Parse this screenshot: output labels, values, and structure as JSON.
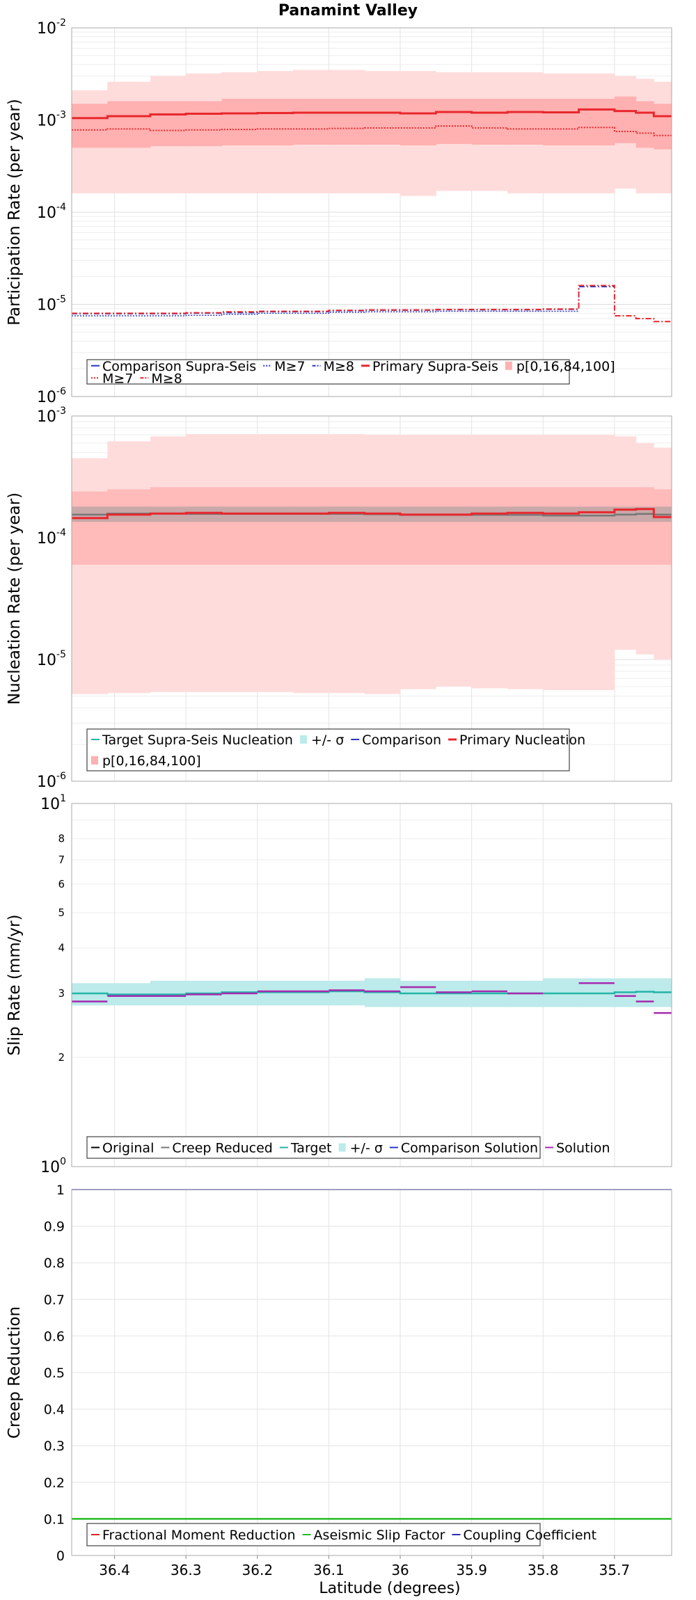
{
  "title": "Panamint Valley",
  "x_axis": {
    "label": "Latitude (degrees)",
    "range": [
      36.46,
      35.62
    ],
    "ticks": [
      36.4,
      36.3,
      36.2,
      36.1,
      36.0,
      35.9,
      35.8,
      35.7
    ],
    "tick_labels": [
      "36.4",
      "36.3",
      "36.2",
      "36.1",
      "36",
      "35.9",
      "35.8",
      "35.7"
    ]
  },
  "bins": [
    36.46,
    36.41,
    36.35,
    36.3,
    36.25,
    36.2,
    36.15,
    36.1,
    36.05,
    36.0,
    35.95,
    35.9,
    35.85,
    35.8,
    35.75,
    35.7,
    35.67,
    35.645,
    35.62
  ],
  "colors": {
    "primary": "#e8272d",
    "primary_band_light": "#ffd6d6",
    "primary_band_dark": "#ffaaaa",
    "comparison": "#2b35c7",
    "target": "#22b5a8",
    "target_band": "#bdeaea",
    "creep": "#777777",
    "solution": "#a62ab0",
    "aseismic": "#22bb22",
    "coupling": "#2a2ab8",
    "fractional": "#dd2222",
    "original": "#000000",
    "grid": "#e6e6e6",
    "frame": "#aaaaaa"
  },
  "chart_data": [
    {
      "type": "line",
      "id": "participation",
      "title": "Panamint Valley",
      "ylabel": "Participation Rate (per year)",
      "yscale": "log",
      "ylim": [
        1e-06,
        0.01
      ],
      "ytick_labels": [
        {
          "base": "10",
          "exp": "-6"
        },
        {
          "base": "10",
          "exp": "-5"
        },
        {
          "base": "10",
          "exp": "-4"
        },
        {
          "base": "10",
          "exp": "-3"
        },
        {
          "base": "10",
          "exp": "-2"
        }
      ],
      "series": [
        {
          "name": "p[0,16,84,100] outer",
          "kind": "band",
          "color": "#ffdcdc",
          "lower": [
            0.00016,
            0.00016,
            0.00016,
            0.00016,
            0.00016,
            0.00016,
            0.00016,
            0.00016,
            0.00016,
            0.00015,
            0.00017,
            0.00017,
            0.00016,
            0.00016,
            0.00016,
            0.00018,
            0.00016,
            0.00016
          ],
          "upper": [
            0.0021,
            0.0026,
            0.003,
            0.0032,
            0.0033,
            0.0034,
            0.0035,
            0.0035,
            0.0034,
            0.0034,
            0.0033,
            0.0033,
            0.0033,
            0.0032,
            0.0032,
            0.003,
            0.0028,
            0.0026
          ]
        },
        {
          "name": "p16-84",
          "kind": "band",
          "color": "#ffb0b0",
          "lower": [
            0.0005,
            0.0005,
            0.00052,
            0.00052,
            0.00053,
            0.00053,
            0.00054,
            0.00054,
            0.00054,
            0.00053,
            0.00055,
            0.00054,
            0.00054,
            0.00053,
            0.00053,
            0.00056,
            0.0005,
            0.00048
          ],
          "upper": [
            0.0015,
            0.0016,
            0.0016,
            0.0016,
            0.0017,
            0.0017,
            0.0017,
            0.0017,
            0.0017,
            0.0017,
            0.0017,
            0.0017,
            0.0017,
            0.0017,
            0.0017,
            0.0018,
            0.0016,
            0.0015
          ]
        },
        {
          "name": "Comparison Supra-Seis",
          "kind": "line",
          "color": "#2b35c7",
          "width": 1,
          "values": [
            0.00105,
            0.0011,
            0.00115,
            0.00117,
            0.00118,
            0.00119,
            0.0012,
            0.0012,
            0.0012,
            0.00118,
            0.00122,
            0.0012,
            0.00122,
            0.00121,
            0.0013,
            0.00125,
            0.0012,
            0.0011
          ]
        },
        {
          "name": "M≥7 (comparison)",
          "kind": "line",
          "color": "#2b35c7",
          "width": 1.5,
          "dash": "2,2",
          "values": [
            7.5e-06,
            7.5e-06,
            7.5e-06,
            7.6e-06,
            7.8e-06,
            8e-06,
            8e-06,
            8.2e-06,
            8.3e-06,
            8.3e-06,
            8.4e-06,
            8.4e-06,
            8.4e-06,
            8.4e-06,
            null,
            null,
            null,
            null
          ]
        },
        {
          "name": "M≥8 (comparison)",
          "kind": "line",
          "color": "#2b35c7",
          "width": 1.5,
          "dash": "8,3,2,3",
          "values": [
            7.9e-06,
            7.9e-06,
            7.9e-06,
            8e-06,
            8.1e-06,
            8.3e-06,
            8.3e-06,
            8.5e-06,
            8.6e-06,
            8.6e-06,
            8.7e-06,
            8.7e-06,
            8.7e-06,
            8.8e-06,
            1.55e-05,
            null,
            null,
            null
          ]
        },
        {
          "name": "Primary Supra-Seis",
          "kind": "line",
          "color": "#e8272d",
          "width": 3,
          "values": [
            0.00105,
            0.0011,
            0.00115,
            0.00117,
            0.00118,
            0.00119,
            0.0012,
            0.0012,
            0.0012,
            0.00118,
            0.00122,
            0.0012,
            0.00122,
            0.00121,
            0.0013,
            0.00125,
            0.0012,
            0.0011
          ]
        },
        {
          "name": "M≥7 (primary)",
          "kind": "line",
          "color": "#e8272d",
          "width": 2,
          "dash": "2,2",
          "values": [
            0.00078,
            0.0008,
            0.00077,
            0.00078,
            0.00079,
            0.0008,
            0.0008,
            0.00081,
            0.00082,
            0.00082,
            0.00086,
            0.00082,
            0.0008,
            0.0008,
            0.00083,
            0.00075,
            0.00072,
            0.00068
          ]
        },
        {
          "name": "M≥8 (primary)",
          "kind": "line",
          "color": "#e8272d",
          "width": 2,
          "dash": "8,3,2,3",
          "values": [
            8e-06,
            8e-06,
            8e-06,
            8.1e-06,
            8.3e-06,
            8.4e-06,
            8.4e-06,
            8.6e-06,
            8.7e-06,
            8.7e-06,
            8.8e-06,
            8.8e-06,
            8.8e-06,
            8.9e-06,
            1.6e-05,
            7.5e-06,
            7e-06,
            6.5e-06
          ]
        }
      ],
      "legend": [
        {
          "label": "Comparison Supra-Seis",
          "style": "line",
          "color": "#2b35c7"
        },
        {
          "label": "M≥7",
          "style": "dot",
          "color": "#2b35c7"
        },
        {
          "label": "M≥8",
          "style": "dashdot",
          "color": "#2b35c7"
        },
        {
          "label": "Primary Supra-Seis",
          "style": "thick",
          "color": "#e8272d"
        },
        {
          "label": "p[0,16,84,100]",
          "style": "box",
          "color": "#ffb0b0"
        },
        {
          "label": "M≥7",
          "style": "dot",
          "color": "#e8272d"
        },
        {
          "label": "M≥8",
          "style": "dashdot",
          "color": "#e8272d"
        }
      ],
      "legend_rows": [
        5,
        2
      ]
    },
    {
      "type": "line",
      "id": "nucleation",
      "ylabel": "Nucleation Rate (per year)",
      "yscale": "log",
      "ylim": [
        1e-06,
        0.001
      ],
      "ytick_labels": [
        {
          "base": "10",
          "exp": "-6"
        },
        {
          "base": "10",
          "exp": "-5"
        },
        {
          "base": "10",
          "exp": "-4"
        },
        {
          "base": "10",
          "exp": "-3"
        }
      ],
      "series": [
        {
          "name": "p[0,16,84,100] outer",
          "kind": "band",
          "color": "#ffdcdc",
          "lower": [
            5.2e-06,
            5.3e-06,
            5.4e-06,
            5.4e-06,
            5.4e-06,
            5.4e-06,
            5.3e-06,
            5.3e-06,
            5.2e-06,
            5.7e-06,
            6e-06,
            5.8e-06,
            5.7e-06,
            5.6e-06,
            5.6e-06,
            1.2e-05,
            1.1e-05,
            1e-05
          ],
          "upper": [
            0.00045,
            0.00062,
            0.00068,
            0.00071,
            0.00071,
            0.00071,
            0.00071,
            0.00071,
            0.0007,
            0.0007,
            0.0007,
            0.0007,
            0.0007,
            0.0007,
            0.0007,
            0.00068,
            0.0006,
            0.00055
          ]
        },
        {
          "name": "p16-84",
          "kind": "band",
          "color": "#ffbaba",
          "lower": [
            6e-05,
            6e-05,
            6e-05,
            6e-05,
            6e-05,
            6e-05,
            6e-05,
            6e-05,
            6e-05,
            6e-05,
            6e-05,
            6e-05,
            6e-05,
            6e-05,
            6e-05,
            6e-05,
            6e-05,
            6e-05
          ],
          "upper": [
            0.00024,
            0.00025,
            0.00026,
            0.00026,
            0.00026,
            0.00026,
            0.00026,
            0.00026,
            0.00026,
            0.00026,
            0.00026,
            0.00026,
            0.00026,
            0.00026,
            0.00026,
            0.00026,
            0.00026,
            0.00025
          ]
        },
        {
          "name": "+/- σ",
          "kind": "band",
          "color": "#c8a8a8",
          "lower": [
            0.000135,
            0.000135,
            0.000135,
            0.000135,
            0.000135,
            0.000135,
            0.000135,
            0.000135,
            0.000135,
            0.000135,
            0.000135,
            0.000135,
            0.000135,
            0.000135,
            0.000135,
            0.000135,
            0.000135,
            0.000135
          ],
          "upper": [
            0.00018,
            0.00018,
            0.00018,
            0.00018,
            0.00018,
            0.00018,
            0.00018,
            0.00018,
            0.00018,
            0.00018,
            0.00018,
            0.00018,
            0.00018,
            0.00018,
            0.00018,
            0.00018,
            0.00018,
            0.00018
          ]
        },
        {
          "name": "Target Supra-Seis Nucleation",
          "kind": "line",
          "color": "#777777",
          "width": 2.5,
          "values": [
            0.000155,
            0.000158,
            0.000158,
            0.000157,
            0.000157,
            0.000157,
            0.000157,
            0.000157,
            0.000156,
            0.000154,
            0.000154,
            0.000154,
            0.000154,
            0.000152,
            0.000152,
            0.000155,
            0.000157,
            0.000155
          ]
        },
        {
          "name": "Primary Nucleation",
          "kind": "line",
          "color": "#e8272d",
          "width": 3,
          "values": [
            0.000145,
            0.000155,
            0.000158,
            0.00016,
            0.000158,
            0.000158,
            0.000158,
            0.00016,
            0.000158,
            0.000155,
            0.000155,
            0.000158,
            0.00016,
            0.000158,
            0.000162,
            0.00017,
            0.000172,
            0.000148
          ]
        }
      ],
      "legend": [
        {
          "label": "Target Supra-Seis Nucleation",
          "style": "line",
          "color": "#22b5a8"
        },
        {
          "label": "+/- σ",
          "style": "box",
          "color": "#bdeaea"
        },
        {
          "label": "Comparison",
          "style": "line",
          "color": "#2b35c7"
        },
        {
          "label": "Primary Nucleation",
          "style": "thick",
          "color": "#e8272d"
        },
        {
          "label": "p[0,16,84,100]",
          "style": "box",
          "color": "#ffb0b0"
        }
      ],
      "legend_rows": [
        4,
        1
      ]
    },
    {
      "type": "line",
      "id": "slip",
      "ylabel": "Slip Rate (mm/yr)",
      "yscale": "log",
      "ylim": [
        1,
        10
      ],
      "ytick_labels": [
        {
          "base": "10",
          "exp": "0"
        },
        {
          "base": "10",
          "exp": "1"
        }
      ],
      "yminor_labels": [
        {
          "v": 2,
          "label": "2"
        },
        {
          "v": 3,
          "label": "3"
        },
        {
          "v": 4,
          "label": "4"
        },
        {
          "v": 5,
          "label": "5"
        },
        {
          "v": 6,
          "label": "6"
        },
        {
          "v": 7,
          "label": "7"
        },
        {
          "v": 8,
          "label": "8"
        }
      ],
      "series": [
        {
          "name": "+/- σ",
          "kind": "band",
          "color": "#bdeaea",
          "lower": [
            2.78,
            2.78,
            2.78,
            2.78,
            2.78,
            2.78,
            2.78,
            2.78,
            2.75,
            2.75,
            2.75,
            2.75,
            2.75,
            2.75,
            2.75,
            2.75,
            2.75,
            2.75
          ],
          "upper": [
            3.2,
            3.2,
            3.25,
            3.25,
            3.25,
            3.25,
            3.25,
            3.25,
            3.3,
            3.25,
            3.25,
            3.25,
            3.25,
            3.3,
            3.3,
            3.3,
            3.3,
            3.3
          ]
        },
        {
          "name": "Target",
          "kind": "line",
          "color": "#22b5a8",
          "width": 2.5,
          "values": [
            3.0,
            2.98,
            2.98,
            3.0,
            3.02,
            3.02,
            3.02,
            3.04,
            3.02,
            3.0,
            3.0,
            3.0,
            3.0,
            3.0,
            3.0,
            3.02,
            3.03,
            3.02
          ]
        },
        {
          "name": "Solution",
          "kind": "line",
          "color": "#a62ab0",
          "width": 2.5,
          "gaps": true,
          "values": [
            2.85,
            2.95,
            2.95,
            2.98,
            3.0,
            3.04,
            3.04,
            3.06,
            3.04,
            3.12,
            3.02,
            3.04,
            3.0,
            null,
            3.2,
            2.95,
            2.85,
            2.65
          ]
        }
      ],
      "legend": [
        {
          "label": "Original",
          "style": "line",
          "color": "#000000"
        },
        {
          "label": "Creep Reduced",
          "style": "line",
          "color": "#777777"
        },
        {
          "label": "Target",
          "style": "line",
          "color": "#22b5a8"
        },
        {
          "label": "+/- σ",
          "style": "box",
          "color": "#bdeaea"
        },
        {
          "label": "Comparison Solution",
          "style": "line",
          "color": "#2b35c7"
        },
        {
          "label": "Solution",
          "style": "line",
          "color": "#a62ab0"
        }
      ],
      "legend_rows": [
        6
      ]
    },
    {
      "type": "line",
      "id": "creep",
      "ylabel": "Creep Reduction",
      "yscale": "linear",
      "ylim": [
        0,
        1
      ],
      "yticks": [
        0,
        0.1,
        0.2,
        0.3,
        0.4,
        0.5,
        0.6,
        0.7,
        0.8,
        0.9,
        1
      ],
      "ytick_text": [
        "0",
        "0.1",
        "0.2",
        "0.3",
        "0.4",
        "0.5",
        "0.6",
        "0.7",
        "0.8",
        "0.9",
        "1"
      ],
      "series": [
        {
          "name": "Aseismic Slip Factor",
          "kind": "line",
          "color": "#22bb22",
          "width": 2.5,
          "values": [
            0.1,
            0.1,
            0.1,
            0.1,
            0.1,
            0.1,
            0.1,
            0.1,
            0.1,
            0.1,
            0.1,
            0.1,
            0.1,
            0.1,
            0.1,
            0.1,
            0.1,
            0.1
          ]
        },
        {
          "name": "Coupling Coefficient",
          "kind": "line",
          "color": "#2a2ab8",
          "width": 1.5,
          "values": [
            1,
            1,
            1,
            1,
            1,
            1,
            1,
            1,
            1,
            1,
            1,
            1,
            1,
            1,
            1,
            1,
            1,
            1
          ]
        }
      ],
      "legend": [
        {
          "label": "Fractional Moment Reduction",
          "style": "line",
          "color": "#dd2222"
        },
        {
          "label": "Aseismic Slip Factor",
          "style": "line",
          "color": "#22bb22"
        },
        {
          "label": "Coupling Coefficient",
          "style": "line",
          "color": "#2a2ab8"
        }
      ],
      "legend_rows": [
        3
      ]
    }
  ]
}
